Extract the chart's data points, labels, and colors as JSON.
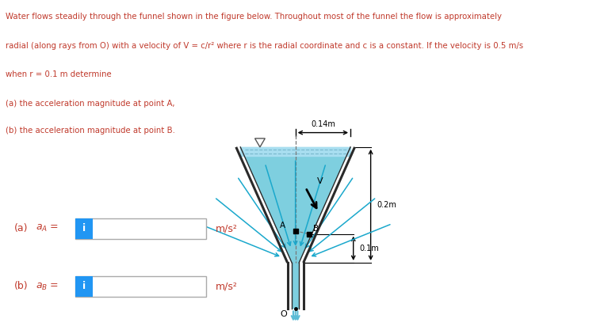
{
  "text_line1": "Water flows steadily through the funnel shown in the figure below. Throughout most of the funnel the flow is approximately",
  "text_line2": "radial (along rays from O) with a velocity of V = c/r² where r is the radial coordinate and c is a constant. If the velocity is 0.5 m/s",
  "text_line3": "when r = 0.1 m determine",
  "text_line4": "(a) the acceleration magnitude at point A,",
  "text_line5": "(b) the acceleration magnitude at point B.",
  "text_color": "#c0392b",
  "funnel_fill_color": "#7ecfdf",
  "funnel_line_color": "#2a2a2a",
  "background_color": "#ffffff",
  "blue_i_color": "#2196F3",
  "input_border_color": "#aaaaaa",
  "arrow_color": "#1aa8cc",
  "dim_color": "#2a2a2a",
  "label_0p14": "0.14m",
  "label_0p2": "0.2m",
  "label_0p1": "0.1m",
  "label_o": "O",
  "label_A": "A",
  "label_B": "B",
  "label_V": "V",
  "blue_i_text": "i"
}
